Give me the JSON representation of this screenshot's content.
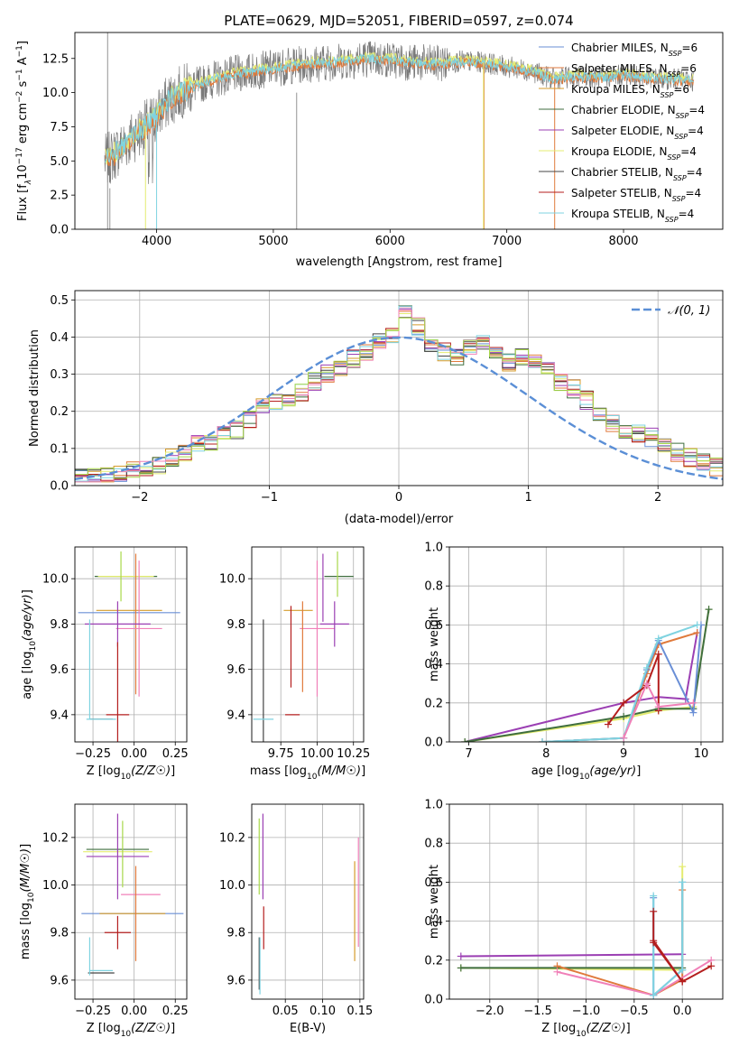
{
  "colors": {
    "chabrier_miles": "#6a8fd6",
    "salpeter_miles": "#e07a3c",
    "kroupa_miles": "#d59b2b",
    "chabrier_elodie": "#3f6e3f",
    "salpeter_elodie": "#9b3fb3",
    "kroupa_elodie": "#e4ec70",
    "chabrier_stelib": "#444444",
    "salpeter_stelib": "#b41e1e",
    "kroupa_stelib": "#7fd3e0",
    "model_gray": "#7a7a7a",
    "grid": "#b0b0b0",
    "gaussian": "#5b8fd6",
    "pink": "#f080b8",
    "lime": "#a8d84a"
  },
  "chart_data": [
    {
      "id": "spectrum",
      "type": "line",
      "title": "PLATE=0629, MJD=52051, FIBERID=0597, z=0.074",
      "xlabel": "wavelength [Angstrom, rest frame]",
      "ylabel_parts": [
        "Flux [f",
        "λ",
        "10",
        "−17",
        " erg cm",
        "−2",
        " s",
        "−1",
        " A",
        "−1",
        "]"
      ],
      "xlim": [
        3300,
        8850
      ],
      "ylim": [
        0,
        14.4
      ],
      "xticks": [
        "4000",
        "5000",
        "6000",
        "7000",
        "8000"
      ],
      "yticks": [
        "0.0",
        "2.5",
        "5.0",
        "7.5",
        "10.0",
        "12.5"
      ],
      "ytick_values": [
        0,
        2.5,
        5,
        7.5,
        10,
        12.5
      ],
      "xtick_values": [
        4000,
        5000,
        6000,
        7000,
        8000
      ],
      "continuum": {
        "x": [
          3550,
          3600,
          3700,
          3800,
          3900,
          4000,
          4100,
          4200,
          4300,
          4500,
          4700,
          5000,
          5300,
          5600,
          5800,
          6000,
          6200,
          6400,
          6600,
          6800,
          7000,
          7200,
          7400,
          7600,
          7800,
          8000,
          8200,
          8400,
          8600,
          8800
        ],
        "y": [
          5.0,
          5.2,
          6.0,
          6.8,
          7.5,
          8.3,
          9.4,
          10.0,
          10.4,
          11.0,
          11.4,
          11.8,
          12.1,
          12.3,
          12.5,
          12.4,
          12.2,
          12.1,
          12.3,
          12.2,
          11.9,
          11.6,
          11.0,
          11.2,
          11.1,
          11.3,
          11.1,
          11.0,
          10.9,
          11.0
        ]
      },
      "legend": [
        {
          "name": "Chabrier MILES",
          "n": "6",
          "color_key": "chabrier_miles"
        },
        {
          "name": "Salpeter MILES",
          "n": "6",
          "color_key": "salpeter_miles"
        },
        {
          "name": "Kroupa MILES",
          "n": "6",
          "color_key": "kroupa_miles"
        },
        {
          "name": "Chabrier ELODIE",
          "n": "4",
          "color_key": "chabrier_elodie"
        },
        {
          "name": "Salpeter ELODIE",
          "n": "4",
          "color_key": "salpeter_elodie"
        },
        {
          "name": "Kroupa ELODIE",
          "n": "4",
          "color_key": "kroupa_elodie"
        },
        {
          "name": "Chabrier STELIB",
          "n": "4",
          "color_key": "chabrier_stelib"
        },
        {
          "name": "Salpeter STELIB",
          "n": "4",
          "color_key": "salpeter_stelib"
        },
        {
          "name": "Kroupa STELIB",
          "n": "4",
          "color_key": "kroupa_stelib"
        }
      ],
      "legend_n_prefix": "N",
      "legend_n_sub": "SSP",
      "legend_location": "right",
      "grid": false
    },
    {
      "id": "residuals",
      "type": "line",
      "xlabel": "(data-model)/error",
      "ylabel": "Normed distribution",
      "xlim": [
        -2.5,
        2.5
      ],
      "ylim": [
        0,
        0.525
      ],
      "xticks": [
        "−2",
        "−1",
        "0",
        "1",
        "2"
      ],
      "xtick_values": [
        -2,
        -1,
        0,
        1,
        2
      ],
      "yticks": [
        "0.0",
        "0.1",
        "0.2",
        "0.3",
        "0.4",
        "0.5"
      ],
      "ytick_values": [
        0,
        0.1,
        0.2,
        0.3,
        0.4,
        0.5
      ],
      "bin_width": 0.1,
      "bin_start": -2.5,
      "base_hist": [
        0.02,
        0.025,
        0.03,
        0.035,
        0.04,
        0.05,
        0.055,
        0.075,
        0.09,
        0.11,
        0.12,
        0.14,
        0.15,
        0.18,
        0.21,
        0.23,
        0.22,
        0.25,
        0.28,
        0.3,
        0.31,
        0.34,
        0.36,
        0.39,
        0.41,
        0.47,
        0.43,
        0.38,
        0.36,
        0.35,
        0.37,
        0.39,
        0.35,
        0.33,
        0.35,
        0.33,
        0.31,
        0.28,
        0.26,
        0.23,
        0.2,
        0.17,
        0.15,
        0.14,
        0.13,
        0.11,
        0.09,
        0.075,
        0.06,
        0.05
      ],
      "legend": [
        {
          "name": "𝒩(0, 1)",
          "color_key": "gaussian",
          "style": "dashed"
        }
      ],
      "legend_location": "top-right",
      "grid": true
    },
    {
      "id": "age_vs_Z",
      "type": "scatter",
      "xlabel": "Z [log10(Z/Z☉)]",
      "ylabel": "age  [log10(age/yr)]",
      "xlim": [
        -0.36,
        0.32
      ],
      "ylim": [
        9.28,
        10.14
      ],
      "xticks": [
        "−0.25",
        "0.00",
        "0.25"
      ],
      "xtick_values": [
        -0.25,
        0.0,
        0.25
      ],
      "yticks": [
        "9.4",
        "9.6",
        "9.8",
        "10.0"
      ],
      "ytick_values": [
        9.4,
        9.6,
        9.8,
        10.0
      ],
      "grid": true,
      "errorbars": [
        {
          "color_key": "chabrier_elodie",
          "x": -0.05,
          "y": 10.01,
          "xerr": 0.19,
          "yerr": 0.0
        },
        {
          "color_key": "kroupa_elodie",
          "x": -0.05,
          "y": 10.01,
          "xerr": 0.17,
          "yerr": 0.0
        },
        {
          "color_key": "lime",
          "x": -0.08,
          "y": 10.01,
          "xerr": 0.0,
          "yerr": 0.11
        },
        {
          "color_key": "chabrier_miles",
          "x": -0.03,
          "y": 9.85,
          "xerr": 0.31,
          "yerr": 0.0
        },
        {
          "color_key": "kroupa_miles",
          "x": -0.03,
          "y": 9.86,
          "xerr": 0.2,
          "yerr": 0.0
        },
        {
          "color_key": "salpeter_miles",
          "x": 0.01,
          "y": 9.8,
          "xerr": 0.0,
          "yerr": 0.31
        },
        {
          "color_key": "pink",
          "x": 0.03,
          "y": 9.78,
          "xerr": 0.14,
          "yerr": 0.3
        },
        {
          "color_key": "salpeter_elodie",
          "x": -0.1,
          "y": 9.8,
          "xerr": 0.2,
          "yerr": 0.1
        },
        {
          "color_key": "salpeter_stelib",
          "x": -0.1,
          "y": 9.4,
          "xerr": 0.07,
          "yerr": 0.32
        },
        {
          "color_key": "chabrier_stelib",
          "x": -0.2,
          "y": 9.38,
          "xerr": 0.07,
          "yerr": 0.0
        },
        {
          "color_key": "kroupa_stelib",
          "x": -0.2,
          "y": 9.38,
          "xerr": 0.09,
          "yerr": 0.0
        },
        {
          "color_key": "kroupa_stelib",
          "x": -0.27,
          "y": 9.6,
          "xerr": 0.0,
          "yerr": 0.22
        }
      ]
    },
    {
      "id": "age_vs_mass",
      "type": "scatter",
      "xlabel": "mass [log10(M/M☉)]",
      "xlim": [
        9.55,
        10.32
      ],
      "ylim": [
        9.28,
        10.14
      ],
      "xticks": [
        "9.75",
        "10.00",
        "10.25"
      ],
      "xtick_values": [
        9.75,
        10.0,
        10.25
      ],
      "yticks": [
        "9.4",
        "9.6",
        "9.8",
        "10.0"
      ],
      "ytick_values": [
        9.4,
        9.6,
        9.8,
        10.0
      ],
      "grid": true,
      "errorbars": [
        {
          "color_key": "chabrier_elodie",
          "x": 10.15,
          "y": 10.01,
          "xerr": 0.1,
          "yerr": 0.0
        },
        {
          "color_key": "lime",
          "x": 10.14,
          "y": 10.02,
          "xerr": 0.0,
          "yerr": 0.1
        },
        {
          "color_key": "salpeter_elodie",
          "x": 10.04,
          "y": 9.96,
          "xerr": 0.0,
          "yerr": 0.15
        },
        {
          "color_key": "kroupa_miles",
          "x": 9.87,
          "y": 9.86,
          "xerr": 0.1,
          "yerr": 0.0
        },
        {
          "color_key": "pink",
          "x": 10.0,
          "y": 9.78,
          "xerr": 0.12,
          "yerr": 0.3
        },
        {
          "color_key": "salpeter_miles",
          "x": 9.9,
          "y": 9.7,
          "xerr": 0.0,
          "yerr": 0.2
        },
        {
          "color_key": "salpeter_elodie",
          "x": 10.12,
          "y": 9.8,
          "xerr": 0.1,
          "yerr": 0.1
        },
        {
          "color_key": "salpeter_stelib",
          "x": 9.83,
          "y": 9.4,
          "xerr": 0.05,
          "yerr": 0.0
        },
        {
          "color_key": "chabrier_stelib",
          "x": 9.63,
          "y": 9.55,
          "xerr": 0.0,
          "yerr": 0.27
        },
        {
          "color_key": "kroupa_stelib",
          "x": 9.63,
          "y": 9.38,
          "xerr": 0.07,
          "yerr": 0.0
        },
        {
          "color_key": "salpeter_stelib",
          "x": 9.82,
          "y": 9.7,
          "xerr": 0.0,
          "yerr": 0.18
        }
      ]
    },
    {
      "id": "weight_vs_age",
      "type": "line",
      "xlabel": "age  [log10(age/yr)]",
      "ylabel": "mass weight",
      "xlim": [
        6.75,
        10.28
      ],
      "ylim": [
        0,
        1.0
      ],
      "xticks": [
        "7",
        "8",
        "9",
        "10"
      ],
      "xtick_values": [
        7,
        8,
        9,
        10
      ],
      "yticks": [
        "0.0",
        "0.2",
        "0.4",
        "0.6",
        "0.8",
        "1.0"
      ],
      "ytick_values": [
        0,
        0.2,
        0.4,
        0.6,
        0.8,
        1.0
      ],
      "grid": true,
      "series": [
        {
          "color_key": "salpeter_elodie",
          "x": [
            6.95,
            9.0,
            9.45,
            9.8,
            9.95
          ],
          "y": [
            0.0,
            0.2,
            0.23,
            0.22,
            0.56
          ]
        },
        {
          "color_key": "kroupa_elodie",
          "x": [
            6.95,
            9.0,
            9.45,
            9.9,
            10.1
          ],
          "y": [
            0.0,
            0.12,
            0.16,
            0.18,
            0.68
          ]
        },
        {
          "color_key": "chabrier_elodie",
          "x": [
            6.95,
            9.0,
            9.45,
            9.9,
            10.1
          ],
          "y": [
            0.0,
            0.13,
            0.17,
            0.17,
            0.68
          ]
        },
        {
          "color_key": "salpeter_miles",
          "x": [
            7.95,
            9.0,
            9.3,
            9.45,
            9.95
          ],
          "y": [
            0.0,
            0.02,
            0.35,
            0.5,
            0.56
          ]
        },
        {
          "color_key": "chabrier_miles",
          "x": [
            7.95,
            9.0,
            9.3,
            9.45,
            9.9,
            10.0
          ],
          "y": [
            0.0,
            0.02,
            0.37,
            0.52,
            0.15,
            0.6
          ]
        },
        {
          "color_key": "kroupa_stelib",
          "x": [
            7.95,
            9.0,
            9.3,
            9.45,
            9.95
          ],
          "y": [
            0.0,
            0.02,
            0.38,
            0.53,
            0.6
          ]
        },
        {
          "color_key": "salpeter_stelib",
          "x": [
            8.8,
            9.0,
            9.3,
            9.45,
            9.45
          ],
          "y": [
            0.09,
            0.2,
            0.29,
            0.45,
            0.16
          ]
        },
        {
          "color_key": "pink",
          "x": [
            9.0,
            9.3,
            9.45,
            9.9
          ],
          "y": [
            0.02,
            0.3,
            0.18,
            0.2
          ]
        }
      ]
    },
    {
      "id": "mass_vs_Z",
      "type": "scatter",
      "xlabel": "Z [log10(Z/Z☉)]",
      "ylabel": "mass [log10(M/M☉)]",
      "xlim": [
        -0.36,
        0.32
      ],
      "ylim": [
        9.52,
        10.34
      ],
      "xticks": [
        "−0.25",
        "0.00",
        "0.25"
      ],
      "xtick_values": [
        -0.25,
        0.0,
        0.25
      ],
      "yticks": [
        "9.6",
        "9.8",
        "10.0",
        "10.2"
      ],
      "ytick_values": [
        9.6,
        9.8,
        10.0,
        10.2
      ],
      "grid": true,
      "errorbars": [
        {
          "color_key": "chabrier_elodie",
          "x": -0.1,
          "y": 10.15,
          "xerr": 0.19,
          "yerr": 0.0
        },
        {
          "color_key": "kroupa_elodie",
          "x": -0.1,
          "y": 10.14,
          "xerr": 0.21,
          "yerr": 0.0
        },
        {
          "color_key": "salpeter_elodie",
          "x": -0.1,
          "y": 10.12,
          "xerr": 0.19,
          "yerr": 0.18
        },
        {
          "color_key": "lime",
          "x": -0.07,
          "y": 10.13,
          "xerr": 0.0,
          "yerr": 0.14
        },
        {
          "color_key": "pink",
          "x": 0.04,
          "y": 9.96,
          "xerr": 0.12,
          "yerr": 0.0
        },
        {
          "color_key": "chabrier_miles",
          "x": -0.01,
          "y": 9.88,
          "xerr": 0.31,
          "yerr": 0.0
        },
        {
          "color_key": "kroupa_miles",
          "x": -0.01,
          "y": 9.88,
          "xerr": 0.2,
          "yerr": 0.0
        },
        {
          "color_key": "salpeter_miles",
          "x": 0.01,
          "y": 9.88,
          "xerr": 0.0,
          "yerr": 0.2
        },
        {
          "color_key": "salpeter_stelib",
          "x": -0.1,
          "y": 9.8,
          "xerr": 0.08,
          "yerr": 0.07
        },
        {
          "color_key": "chabrier_stelib",
          "x": -0.2,
          "y": 9.63,
          "xerr": 0.08,
          "yerr": 0.0
        },
        {
          "color_key": "kroupa_stelib",
          "x": -0.2,
          "y": 9.64,
          "xerr": 0.07,
          "yerr": 0.0
        },
        {
          "color_key": "kroupa_stelib",
          "x": -0.27,
          "y": 9.7,
          "xerr": 0.0,
          "yerr": 0.08
        }
      ]
    },
    {
      "id": "mass_vs_EBV",
      "type": "scatter",
      "xlabel": "E(B-V)",
      "xlim": [
        0.005,
        0.155
      ],
      "ylim": [
        9.52,
        10.34
      ],
      "xticks": [
        "0.05",
        "0.10",
        "0.15"
      ],
      "xtick_values": [
        0.05,
        0.1,
        0.15
      ],
      "yticks": [
        "9.6",
        "9.8",
        "10.0",
        "10.2"
      ],
      "ytick_values": [
        9.6,
        9.8,
        10.0,
        10.2
      ],
      "grid": true,
      "errorbars": [
        {
          "color_key": "lime",
          "x": 0.015,
          "y": 10.12,
          "xerr": 0.0,
          "yerr": 0.16
        },
        {
          "color_key": "salpeter_elodie",
          "x": 0.02,
          "y": 10.12,
          "xerr": 0.0,
          "yerr": 0.18
        },
        {
          "color_key": "salpeter_stelib",
          "x": 0.021,
          "y": 9.82,
          "xerr": 0.0,
          "yerr": 0.09
        },
        {
          "color_key": "chabrier_stelib",
          "x": 0.015,
          "y": 9.67,
          "xerr": 0.0,
          "yerr": 0.11
        },
        {
          "color_key": "kroupa_stelib",
          "x": 0.016,
          "y": 9.66,
          "xerr": 0.0,
          "yerr": 0.12
        },
        {
          "color_key": "kroupa_miles",
          "x": 0.143,
          "y": 9.89,
          "xerr": 0.0,
          "yerr": 0.21
        },
        {
          "color_key": "pink",
          "x": 0.148,
          "y": 9.97,
          "xerr": 0.0,
          "yerr": 0.23
        }
      ]
    },
    {
      "id": "weight_vs_Z",
      "type": "line",
      "xlabel": "Z [log10(Z/Z☉)]",
      "ylabel": "mass weight",
      "xlim": [
        -2.42,
        0.42
      ],
      "ylim": [
        0,
        1.0
      ],
      "xticks": [
        "−2.0",
        "−1.5",
        "−1.0",
        "−0.5",
        "0.0"
      ],
      "xtick_values": [
        -2.0,
        -1.5,
        -1.0,
        -0.5,
        0.0
      ],
      "yticks": [
        "0.0",
        "0.2",
        "0.4",
        "0.6",
        "0.8",
        "1.0"
      ],
      "ytick_values": [
        0,
        0.2,
        0.4,
        0.6,
        0.8,
        1.0
      ],
      "grid": true,
      "series": [
        {
          "color_key": "salpeter_elodie",
          "x": [
            -2.3,
            0.0
          ],
          "y": [
            0.22,
            0.23
          ]
        },
        {
          "color_key": "kroupa_elodie",
          "x": [
            -2.3,
            0.0,
            0.0
          ],
          "y": [
            0.16,
            0.15,
            0.68
          ]
        },
        {
          "color_key": "chabrier_elodie",
          "x": [
            -2.3,
            0.0
          ],
          "y": [
            0.16,
            0.16
          ]
        },
        {
          "color_key": "salpeter_miles",
          "x": [
            -1.3,
            -0.3,
            0.0,
            0.0
          ],
          "y": [
            0.17,
            0.02,
            0.1,
            0.56
          ]
        },
        {
          "color_key": "pink",
          "x": [
            -1.3,
            -0.3,
            0.3
          ],
          "y": [
            0.14,
            0.02,
            0.2
          ]
        },
        {
          "color_key": "chabrier_miles",
          "x": [
            -0.3,
            -0.3,
            0.0,
            0.0
          ],
          "y": [
            0.52,
            0.02,
            0.15,
            0.6
          ]
        },
        {
          "color_key": "kroupa_stelib",
          "x": [
            -0.3,
            -0.3,
            0.0,
            0.0
          ],
          "y": [
            0.53,
            0.02,
            0.15,
            0.6
          ]
        },
        {
          "color_key": "salpeter_stelib",
          "x": [
            -0.3,
            -0.3,
            0.0,
            0.3
          ],
          "y": [
            0.45,
            0.29,
            0.09,
            0.17
          ]
        },
        {
          "color_key": "salpeter_stelib",
          "x": [
            -0.3,
            0.0
          ],
          "y": [
            0.3,
            0.09
          ]
        }
      ]
    }
  ]
}
